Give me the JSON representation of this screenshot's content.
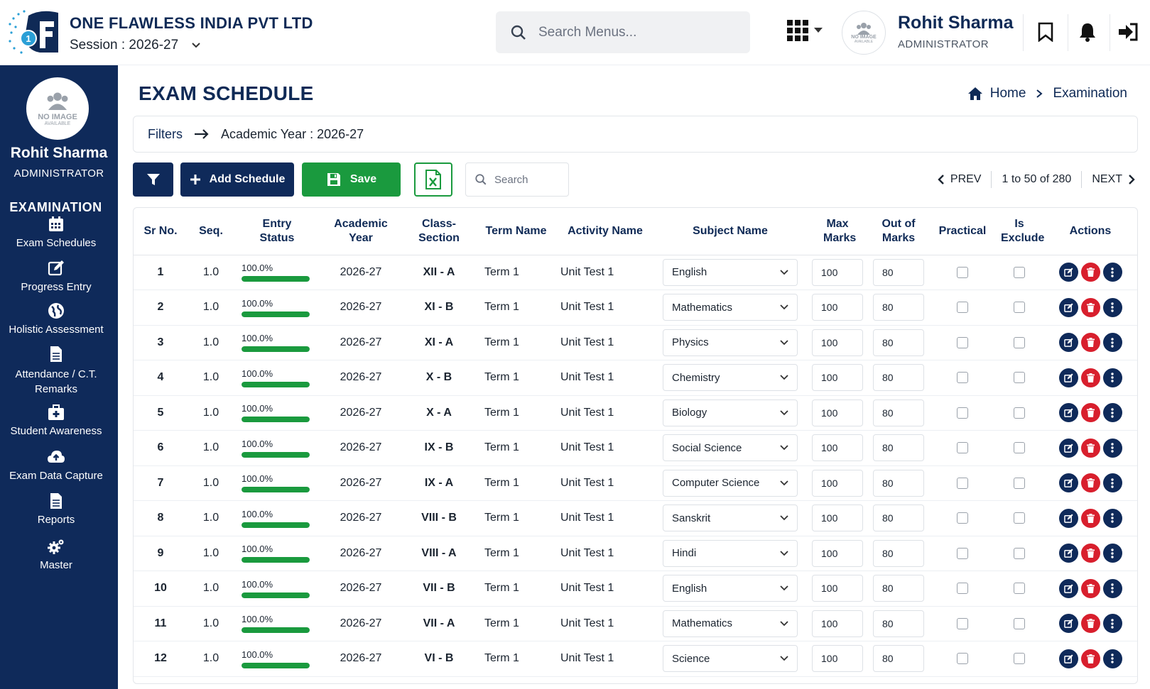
{
  "header": {
    "company": "ONE FLAWLESS INDIA PVT LTD",
    "session_label": "Session : 2026-27",
    "search_placeholder": "Search Menus...",
    "user_name": "Rohit Sharma",
    "user_role": "ADMINISTRATOR",
    "avatar_text_1": "NO IMAGE",
    "avatar_text_2": "AVAILABLE"
  },
  "sidebar": {
    "user_name": "Rohit Sharma",
    "user_role": "ADMINISTRATOR",
    "section": "EXAMINATION",
    "items": [
      {
        "label": "Exam Schedules",
        "icon": "calendar-icon"
      },
      {
        "label": "Progress Entry",
        "icon": "edit-icon"
      },
      {
        "label": "Holistic Assessment",
        "icon": "globe-icon"
      },
      {
        "label": "Attendance / C.T. Remarks",
        "icon": "document-icon"
      },
      {
        "label": "Student Awareness",
        "icon": "briefcase-medical-icon"
      },
      {
        "label": "Exam Data Capture",
        "icon": "cloud-upload-icon"
      },
      {
        "label": "Reports",
        "icon": "report-icon"
      },
      {
        "label": "Master",
        "icon": "gears-icon"
      }
    ]
  },
  "page": {
    "title": "EXAM SCHEDULE",
    "breadcrumb_home": "Home",
    "breadcrumb_current": "Examination"
  },
  "filters": {
    "label": "Filters",
    "value": "Academic Year : 2026-27"
  },
  "toolbar": {
    "add_label": "Add Schedule",
    "save_label": "Save",
    "search_placeholder": "Search",
    "prev_label": "PREV",
    "page_info": "1 to 50 of 280",
    "next_label": "NEXT"
  },
  "table": {
    "columns": [
      "Sr No.",
      "Seq.",
      "Entry Status",
      "Academic Year",
      "Class-Section",
      "Term Name",
      "Activity Name",
      "Subject Name",
      "Max Marks",
      "Out of Marks",
      "Practical",
      "Is Exclude",
      "Actions"
    ],
    "rows": [
      {
        "sr": "1",
        "seq": "1.0",
        "status": "100.0%",
        "progress": 1.0,
        "year": "2026-27",
        "class": "XII - A",
        "term": "Term 1",
        "activity": "Unit Test 1",
        "subject": "English",
        "max": "100",
        "out": "80",
        "practical": false,
        "exclude": false
      },
      {
        "sr": "2",
        "seq": "1.0",
        "status": "100.0%",
        "progress": 1.0,
        "year": "2026-27",
        "class": "XI - B",
        "term": "Term 1",
        "activity": "Unit Test 1",
        "subject": "Mathematics",
        "max": "100",
        "out": "80",
        "practical": false,
        "exclude": false
      },
      {
        "sr": "3",
        "seq": "1.0",
        "status": "100.0%",
        "progress": 1.0,
        "year": "2026-27",
        "class": "XI - A",
        "term": "Term 1",
        "activity": "Unit Test 1",
        "subject": "Physics",
        "max": "100",
        "out": "80",
        "practical": false,
        "exclude": false
      },
      {
        "sr": "4",
        "seq": "1.0",
        "status": "100.0%",
        "progress": 1.0,
        "year": "2026-27",
        "class": "X - B",
        "term": "Term 1",
        "activity": "Unit Test 1",
        "subject": "Chemistry",
        "max": "100",
        "out": "80",
        "practical": false,
        "exclude": false
      },
      {
        "sr": "5",
        "seq": "1.0",
        "status": "100.0%",
        "progress": 1.0,
        "year": "2026-27",
        "class": "X - A",
        "term": "Term 1",
        "activity": "Unit Test 1",
        "subject": "Biology",
        "max": "100",
        "out": "80",
        "practical": false,
        "exclude": false
      },
      {
        "sr": "6",
        "seq": "1.0",
        "status": "100.0%",
        "progress": 1.0,
        "year": "2026-27",
        "class": "IX - B",
        "term": "Term 1",
        "activity": "Unit Test 1",
        "subject": "Social Science",
        "max": "100",
        "out": "80",
        "practical": false,
        "exclude": false
      },
      {
        "sr": "7",
        "seq": "1.0",
        "status": "100.0%",
        "progress": 1.0,
        "year": "2026-27",
        "class": "IX - A",
        "term": "Term 1",
        "activity": "Unit Test 1",
        "subject": "Computer Science",
        "max": "100",
        "out": "80",
        "practical": false,
        "exclude": false
      },
      {
        "sr": "8",
        "seq": "1.0",
        "status": "100.0%",
        "progress": 1.0,
        "year": "2026-27",
        "class": "VIII - B",
        "term": "Term 1",
        "activity": "Unit Test 1",
        "subject": "Sanskrit",
        "max": "100",
        "out": "80",
        "practical": false,
        "exclude": false
      },
      {
        "sr": "9",
        "seq": "1.0",
        "status": "100.0%",
        "progress": 1.0,
        "year": "2026-27",
        "class": "VIII - A",
        "term": "Term 1",
        "activity": "Unit Test 1",
        "subject": "Hindi",
        "max": "100",
        "out": "80",
        "practical": false,
        "exclude": false
      },
      {
        "sr": "10",
        "seq": "1.0",
        "status": "100.0%",
        "progress": 1.0,
        "year": "2026-27",
        "class": "VII - B",
        "term": "Term 1",
        "activity": "Unit Test 1",
        "subject": "English",
        "max": "100",
        "out": "80",
        "practical": false,
        "exclude": false
      },
      {
        "sr": "11",
        "seq": "1.0",
        "status": "100.0%",
        "progress": 1.0,
        "year": "2026-27",
        "class": "VII - A",
        "term": "Term 1",
        "activity": "Unit Test 1",
        "subject": "Mathematics",
        "max": "100",
        "out": "80",
        "practical": false,
        "exclude": false
      },
      {
        "sr": "12",
        "seq": "1.0",
        "status": "100.0%",
        "progress": 1.0,
        "year": "2026-27",
        "class": "VI - B",
        "term": "Term 1",
        "activity": "Unit Test 1",
        "subject": "Science",
        "max": "100",
        "out": "80",
        "practical": false,
        "exclude": false
      }
    ]
  },
  "colors": {
    "navy": "#0f2a5a",
    "green": "#1a9a3e",
    "red": "#d81f2d"
  }
}
